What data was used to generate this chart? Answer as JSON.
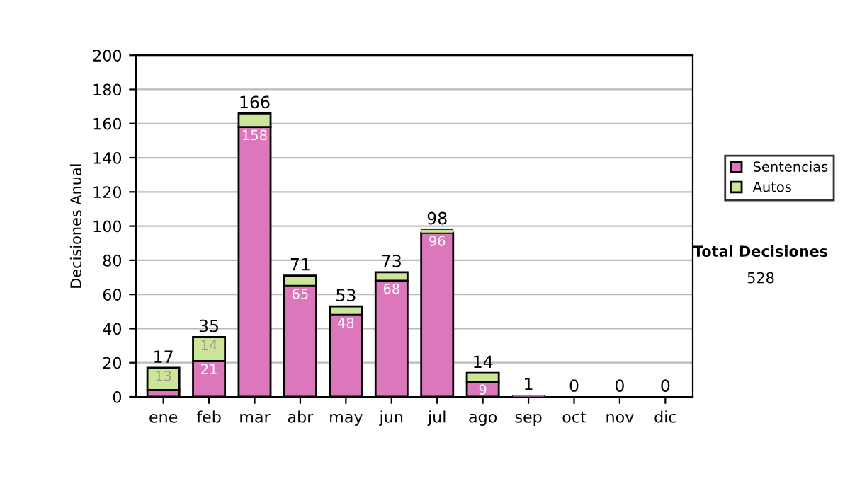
{
  "chart_data": {
    "type": "bar",
    "stacked": true,
    "ylabel": "Decisiones Anual",
    "categories": [
      "ene",
      "feb",
      "mar",
      "abr",
      "may",
      "jun",
      "jul",
      "ago",
      "sep",
      "oct",
      "nov",
      "dic"
    ],
    "series": [
      {
        "name": "Sentencias",
        "color": "#dd77bb",
        "values": [
          4,
          21,
          158,
          65,
          48,
          68,
          96,
          9,
          1,
          0,
          0,
          0
        ],
        "value_labels": [
          null,
          "21",
          "158",
          "65",
          "48",
          "68",
          "96",
          "9",
          null,
          null,
          null,
          null
        ]
      },
      {
        "name": "Autos",
        "color": "#cce699",
        "values": [
          13,
          14,
          8,
          6,
          5,
          5,
          2,
          5,
          0,
          0,
          0,
          0
        ],
        "value_labels": [
          "13",
          "14",
          null,
          null,
          null,
          null,
          null,
          null,
          null,
          null,
          null,
          null
        ]
      }
    ],
    "totals": [
      "17",
      "35",
      "166",
      "71",
      "53",
      "73",
      "98",
      "14",
      "1",
      "0",
      "0",
      "0"
    ],
    "ylim": [
      0,
      200
    ],
    "yticks": [
      0,
      20,
      40,
      60,
      80,
      100,
      120,
      140,
      160,
      180,
      200
    ],
    "grid": "y",
    "legend": "right",
    "annotations": [
      "Total Decisiones",
      "528"
    ]
  }
}
